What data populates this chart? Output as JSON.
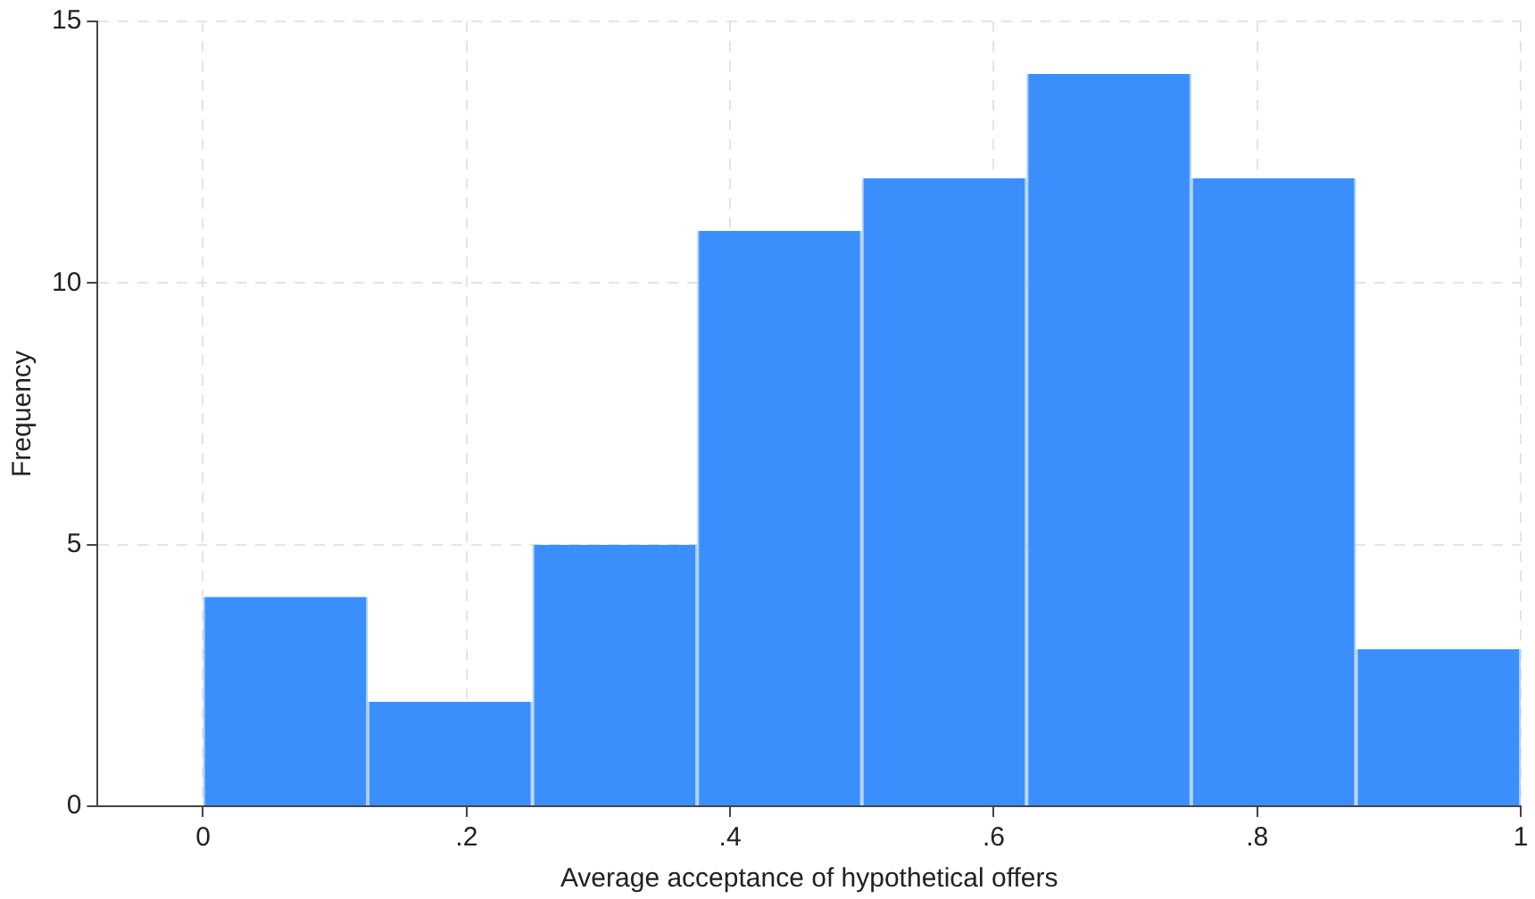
{
  "chart_data": {
    "type": "histogram",
    "xlabel": "Average acceptance of hypothetical offers",
    "ylabel": "Frequency",
    "bins": [
      0,
      0.125,
      0.25,
      0.375,
      0.5,
      0.625,
      0.75,
      0.875,
      1
    ],
    "values": [
      4,
      2,
      5,
      11,
      12,
      14,
      12,
      3
    ],
    "color": "#3a8ffd",
    "xlim": [
      -0.08,
      1
    ],
    "xticks": [
      0,
      {
        "value": 0.2,
        "label": ".2"
      },
      {
        "value": 0.4,
        "label": ".4"
      },
      {
        "value": 0.6,
        "label": ".6"
      },
      {
        "value": 0.8,
        "label": ".8"
      },
      1
    ],
    "ylim": [
      0,
      15
    ],
    "yticks": [
      0,
      5,
      10,
      15
    ],
    "grid": true,
    "legend": false
  }
}
